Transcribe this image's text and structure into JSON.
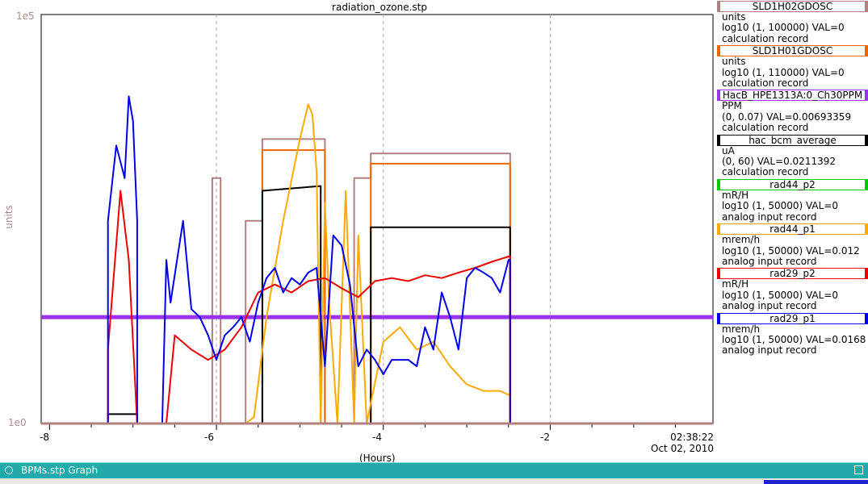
{
  "window": {
    "title": "radiation_ozone.stp",
    "taskbar_title": "BPMs.stp Graph"
  },
  "axes": {
    "y_top_label": "1e5",
    "y_bottom_label": "1e0",
    "y_title": "units",
    "x_title": "(Hours)",
    "x_ticks": [
      "-8",
      "-6",
      "-4",
      "-2"
    ],
    "time_label": "02:38:22",
    "date_label": "Oct 02, 2010"
  },
  "legend": [
    {
      "name": "SLD1H02GDOSC",
      "color": "#b08080",
      "lines": [
        "units",
        "log10 (1, 100000) VAL=0",
        "calculation record"
      ]
    },
    {
      "name": "SLD1H01GDOSC",
      "color": "#ee6600",
      "lines": [
        "units",
        "log10 (1, 110000) VAL=0",
        "calculation record"
      ]
    },
    {
      "name": "HacB_HPE1313A:0_Ch30PPM",
      "color": "#9933ee",
      "lines": [
        "PPM",
        "(0, 0.07) VAL=0.00693359",
        "calculation record"
      ]
    },
    {
      "name": "hac_bcm_average",
      "color": "#000000",
      "lines": [
        "uA",
        "(0, 60) VAL=0.0211392",
        "calculation record"
      ]
    },
    {
      "name": "rad44_p2",
      "color": "#00cc00",
      "lines": [
        "mR/H",
        "log10 (1, 50000)  VAL=0",
        "analog input record"
      ]
    },
    {
      "name": "rad44_p1",
      "color": "#ffaa00",
      "lines": [
        "mrem/h",
        "log10 (1, 50000) VAL=0.012",
        "analog input record"
      ]
    },
    {
      "name": "rad29_p2",
      "color": "#ee0000",
      "lines": [
        "mR/H",
        "log10 (1, 50000)  VAL=0",
        "analog input record"
      ]
    },
    {
      "name": "rad29_p1",
      "color": "#0000ee",
      "lines": [
        "mrem/h",
        "log10 (1, 50000) VAL=0.0168",
        "analog input record"
      ]
    }
  ],
  "chart_data": {
    "type": "line",
    "xlabel": "(Hours)",
    "ylabel": "units",
    "xlim": [
      -8.1,
      -0.05
    ],
    "ylim": [
      1,
      100000
    ],
    "yscale": "log",
    "grid": true,
    "series": [
      {
        "name": "SLD1H02GDOSC",
        "color": "#b08080",
        "x": [
          -8.1,
          -6.05,
          -6.05,
          -5.95,
          -5.95,
          -5.65,
          -5.65,
          -5.45,
          -5.45,
          -4.7,
          -4.7,
          -4.35,
          -4.35,
          -4.15,
          -4.15,
          -3.6,
          -3.6,
          -3.3,
          -3.3,
          -3.0,
          -3.0,
          -2.48,
          -2.48,
          -0.05
        ],
        "y": [
          1,
          1,
          1000,
          1000,
          1,
          1,
          300,
          300,
          3000,
          3000,
          1,
          1,
          1000,
          1000,
          2000,
          2000,
          2000,
          2000,
          2000,
          2000,
          2000,
          2000,
          1,
          1
        ]
      },
      {
        "name": "SLD1H01GDOSC",
        "color": "#ee6600",
        "x": [
          -8.1,
          -5.45,
          -5.45,
          -4.7,
          -4.7,
          -4.15,
          -4.15,
          -2.48,
          -2.48,
          -0.05
        ],
        "y": [
          1,
          1,
          2200,
          2200,
          1,
          1,
          1500,
          1500,
          1,
          1
        ]
      },
      {
        "name": "HacB_HPE1313A:0_Ch30PPM",
        "color": "#9933ee",
        "x": [
          -8.1,
          -7.0,
          -6.0,
          -5.0,
          -4.0,
          -3.0,
          -2.0,
          -1.0,
          -0.05
        ],
        "y": [
          20,
          20,
          20,
          20,
          20,
          20,
          20,
          20,
          20
        ]
      },
      {
        "name": "hac_bcm_average",
        "color": "#000000",
        "x": [
          -8.1,
          -7.3,
          -7.3,
          -6.95,
          -6.95,
          -5.45,
          -5.45,
          -4.75,
          -4.75,
          -4.15,
          -4.15,
          -2.48,
          -2.48,
          -0.05
        ],
        "y": [
          1,
          1,
          1.3,
          1.3,
          1,
          1,
          700,
          800,
          1,
          1,
          250,
          250,
          1,
          1
        ]
      },
      {
        "name": "rad44_p2",
        "color": "#00cc00",
        "x": [
          -8.1,
          -0.05
        ],
        "y": [
          1,
          1
        ]
      },
      {
        "name": "rad44_p1",
        "color": "#ffaa00",
        "x": [
          -8.1,
          -5.65,
          -5.55,
          -5.4,
          -5.2,
          -5.0,
          -4.9,
          -4.85,
          -4.8,
          -4.75,
          -4.7,
          -4.65,
          -4.55,
          -4.45,
          -4.35,
          -4.3,
          -4.2,
          -4.0,
          -3.8,
          -3.6,
          -3.4,
          -3.2,
          -3.0,
          -2.8,
          -2.6,
          -2.48,
          -2.48,
          -0.05
        ],
        "y": [
          1,
          1,
          1.2,
          20,
          300,
          3000,
          8000,
          6000,
          1200,
          1,
          500,
          30,
          1,
          700,
          1,
          200,
          1,
          10,
          15,
          8,
          10,
          5,
          3,
          2.5,
          2.5,
          2.2,
          1,
          1
        ]
      },
      {
        "name": "rad29_p2",
        "color": "#ee0000",
        "x": [
          -8.1,
          -7.3,
          -7.3,
          -7.15,
          -7.05,
          -6.95,
          -6.6,
          -6.5,
          -6.3,
          -6.1,
          -5.9,
          -5.7,
          -5.5,
          -5.3,
          -5.1,
          -4.9,
          -4.7,
          -4.5,
          -4.3,
          -4.1,
          -3.9,
          -3.7,
          -3.5,
          -3.3,
          -3.1,
          -2.9,
          -2.7,
          -2.5,
          -2.48,
          -2.48,
          -0.05
        ],
        "y": [
          1,
          1,
          8,
          700,
          100,
          1,
          1,
          12,
          8,
          6,
          8,
          15,
          40,
          50,
          40,
          55,
          60,
          45,
          35,
          55,
          60,
          55,
          65,
          60,
          70,
          80,
          95,
          110,
          110,
          1,
          1
        ]
      },
      {
        "name": "rad29_p1",
        "color": "#0000ee",
        "x": [
          -8.1,
          -7.3,
          -7.3,
          -7.2,
          -7.1,
          -7.05,
          -7.0,
          -6.95,
          -6.95,
          -6.65,
          -6.6,
          -6.55,
          -6.4,
          -6.3,
          -6.2,
          -6.1,
          -6.0,
          -5.9,
          -5.8,
          -5.7,
          -5.6,
          -5.5,
          -5.4,
          -5.3,
          -5.2,
          -5.1,
          -5.0,
          -4.9,
          -4.8,
          -4.7,
          -4.6,
          -4.5,
          -4.4,
          -4.3,
          -4.2,
          -4.1,
          -4.0,
          -3.9,
          -3.8,
          -3.7,
          -3.6,
          -3.5,
          -3.4,
          -3.3,
          -3.2,
          -3.1,
          -3.0,
          -2.9,
          -2.8,
          -2.7,
          -2.6,
          -2.5,
          -2.48,
          -2.48,
          -0.05
        ],
        "y": [
          1,
          1,
          300,
          2500,
          1000,
          10000,
          5000,
          300,
          1,
          1,
          100,
          30,
          300,
          25,
          20,
          12,
          6,
          12,
          15,
          20,
          10,
          30,
          60,
          80,
          40,
          60,
          50,
          70,
          80,
          5,
          200,
          150,
          50,
          5,
          8,
          6,
          4,
          6,
          6,
          6,
          5,
          15,
          8,
          40,
          20,
          8,
          60,
          80,
          70,
          60,
          40,
          100,
          100,
          1,
          1
        ]
      }
    ]
  }
}
